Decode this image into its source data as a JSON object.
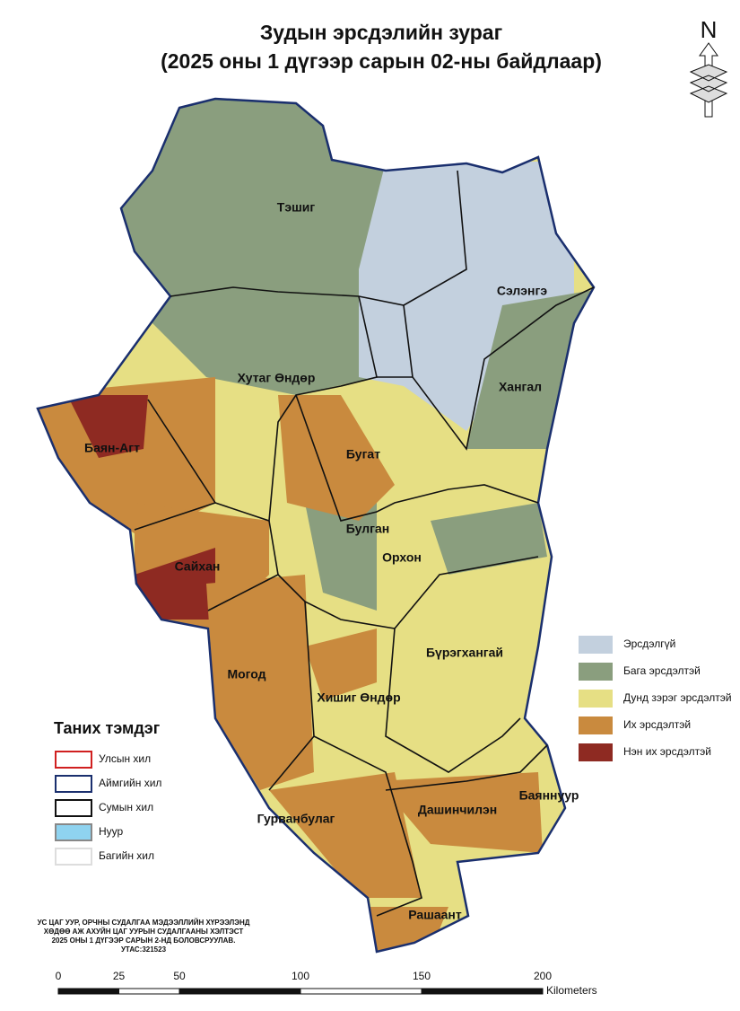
{
  "title": {
    "line1": "Зудын эрсдэлийн зураг",
    "line2": "(2025 оны 1 дүгээр сарын 02-ны байдлаар)"
  },
  "north": "N",
  "regions": [
    "Тэшиг",
    "Сэлэнгэ",
    "Хангал",
    "Хутаг Өндөр",
    "Баян-Агт",
    "Бугат",
    "Булган",
    "Орхон",
    "Сайхан",
    "Бүрэгхангай",
    "Могод",
    "Хишиг Өндөр",
    "Баяннуур",
    "Гурванбулаг",
    "Дашинчилэн",
    "Рашаант"
  ],
  "risk_legend": [
    {
      "label": "Эрсдэлгүй",
      "color": "#c3d0de"
    },
    {
      "label": "Бага эрсдэлтэй",
      "color": "#8a9e7e"
    },
    {
      "label": "Дунд зэрэг эрсдэлтэй",
      "color": "#e6df84"
    },
    {
      "label": "Их эрсдэлтэй",
      "color": "#c98a3e"
    },
    {
      "label": "Нэн их эрсдэлтэй",
      "color": "#8e2a22"
    }
  ],
  "legend": {
    "title": "Таних тэмдэг",
    "items": [
      {
        "label": "Улсын хил",
        "color": "#d02020"
      },
      {
        "label": "Аймгийн хил",
        "color": "#1a2f6e"
      },
      {
        "label": "Сумын хил",
        "color": "#111111"
      },
      {
        "label": "Нуур",
        "color": "#8fd3f0"
      },
      {
        "label": "Багийн хил",
        "color": "#dddddd"
      }
    ]
  },
  "credit": [
    "УС ЦАГ УУР, ОРЧНЫ СУДАЛГАА МЭДЭЭЛЛИЙН ХҮРЭЭЛЭНД",
    "ХӨДӨӨ АЖ АХУЙН ЦАГ УУРЫН СУДАЛГААНЫ ХЭЛТЭСТ",
    "2025 ОНЫ 1 ДҮГЭЭР САРЫН 2-НД БОЛОВСРУУЛАВ.",
    "УТАС:321523"
  ],
  "scale": {
    "ticks": [
      0,
      25,
      50,
      100,
      150,
      200
    ],
    "unit": "Kilometers"
  }
}
